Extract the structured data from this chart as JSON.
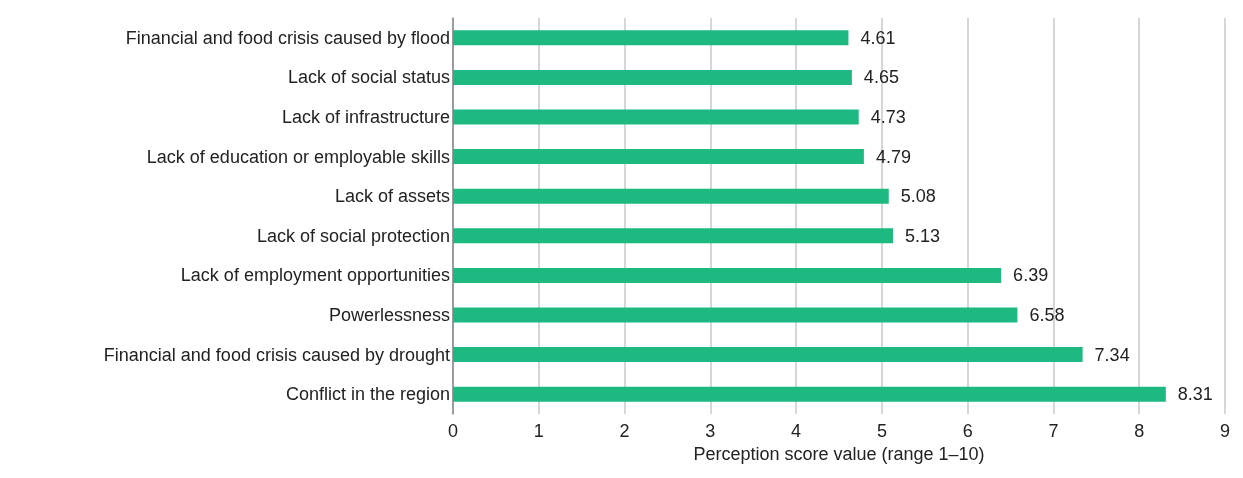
{
  "chart_data": {
    "type": "bar",
    "orientation": "horizontal",
    "xlabel": "Perception score value (range 1–10)",
    "categories": [
      "Financial and food crisis caused by flood",
      "Lack of social status",
      "Lack of infrastructure",
      "Lack of education or employable skills",
      "Lack of assets",
      "Lack of social protection",
      "Lack of employment opportunities",
      "Powerlessness",
      "Financial and food crisis caused by drought",
      "Conflict in the region"
    ],
    "values": [
      4.61,
      4.65,
      4.73,
      4.79,
      5.08,
      5.13,
      6.39,
      6.58,
      7.34,
      8.31
    ],
    "color": "#1db981",
    "xlim": [
      0,
      9
    ],
    "xticks": [
      0,
      1,
      2,
      3,
      4,
      5,
      6,
      7,
      8,
      9
    ],
    "grid": "x",
    "data_labels": true
  }
}
